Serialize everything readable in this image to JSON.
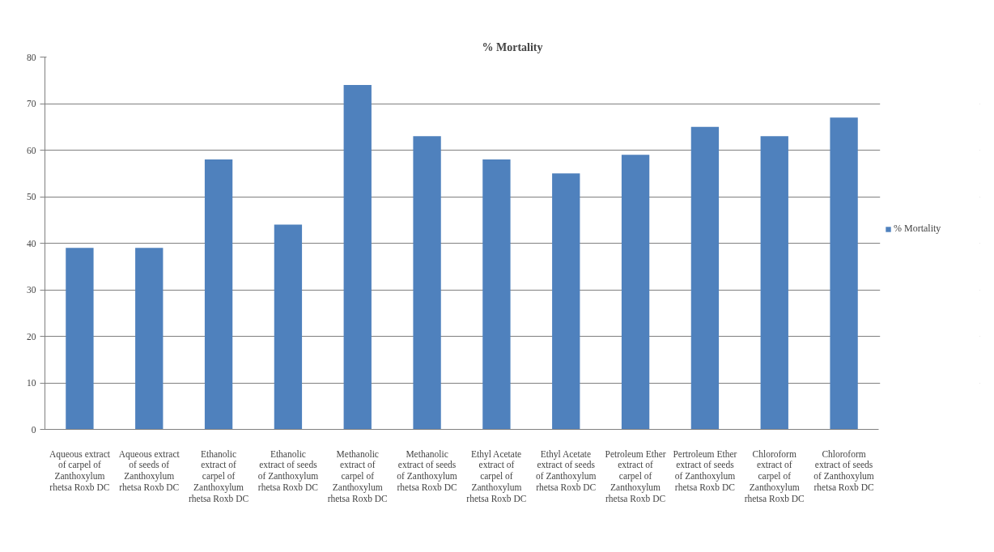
{
  "chart_data": {
    "type": "bar",
    "title": "% Mortality",
    "categories": [
      "Aqueous extract of carpel of Zanthoxylum rhetsa Roxb DC",
      "Aqueous extract of seeds of Zanthoxylum rhetsa Roxb DC",
      "Ethanolic extract of carpel of Zanthoxylum rhetsa Roxb DC",
      "Ethanolic extract of seeds of Zanthoxylum rhetsa Roxb DC",
      "Methanolic extract of carpel of Zanthoxylum rhetsa Roxb DC",
      "Methanolic extract of seeds of Zanthoxylum rhetsa Roxb DC",
      "Ethyl Acetate extract of carpel of Zanthoxylum rhetsa Roxb DC",
      "Ethyl Acetate extract of seeds of Zanthoxylum rhetsa Roxb DC",
      "Petroleum Ether extract of carpel of Zanthoxylum rhetsa Roxb DC",
      "Pertroleum Ether extract of seeds of Zanthoxylum rhetsa Roxb DC",
      "Chloroform extract of carpel of Zanthoxylum rhetsa Roxb DC",
      "Chloroform extract of seeds of Zanthoxylum rhetsa Roxb DC"
    ],
    "series": [
      {
        "name": "% Mortality",
        "color": "#4f81bd",
        "values": [
          39,
          39,
          58,
          44,
          74,
          63,
          58,
          55,
          59,
          65,
          63,
          67
        ]
      }
    ],
    "ylim": [
      0,
      80
    ],
    "yticks": [
      0,
      10,
      20,
      30,
      40,
      50,
      60,
      70,
      80
    ],
    "grid": "y",
    "legend": "right"
  }
}
